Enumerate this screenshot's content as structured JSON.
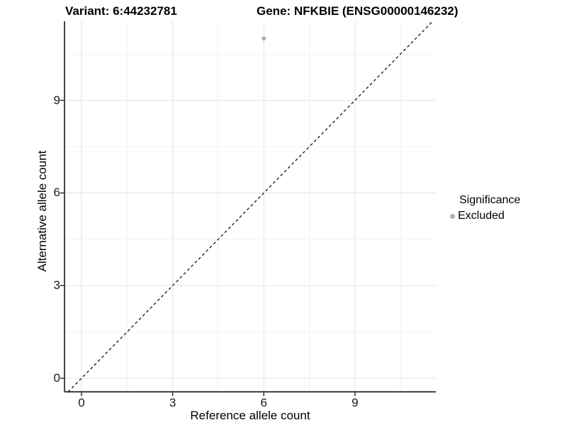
{
  "titles": {
    "variant": "Variant: 6:44232781",
    "gene": "Gene: NFKBIE (ENSG00000146232)"
  },
  "axes": {
    "xlabel": "Reference allele count",
    "ylabel": "Alternative allele count"
  },
  "legend": {
    "title": "Significance",
    "items": [
      {
        "label": "Excluded",
        "color": "#b0b0b0"
      }
    ]
  },
  "chart_data": {
    "type": "scatter",
    "title_left": "Variant: 6:44232781",
    "title_right": "Gene: NFKBIE (ENSG00000146232)",
    "xlabel": "Reference allele count",
    "ylabel": "Alternative allele count",
    "xlim": [
      -0.56,
      11.66
    ],
    "ylim": [
      -0.44,
      11.56
    ],
    "xticks": [
      0,
      3,
      6,
      9
    ],
    "yticks": [
      0,
      3,
      6,
      9
    ],
    "minor_xticks": [
      1.5,
      4.5,
      7.5,
      10.5
    ],
    "minor_yticks": [
      1.5,
      4.5,
      7.5,
      10.5
    ],
    "grid": true,
    "legend_position": "right",
    "identity_line": {
      "style": "dashed",
      "slope": 1,
      "intercept": 0
    },
    "series": [
      {
        "name": "Excluded",
        "color": "#b0b0b0",
        "points": [
          {
            "x": 6,
            "y": 11
          }
        ]
      }
    ]
  },
  "colors": {
    "background": "#ffffff",
    "point": "#b0b0b0",
    "grid_major": "#e7e7e7",
    "grid_minor": "#f1f1f1",
    "axis_line": "#2f2f2f",
    "tick_text": "#1a1a1a",
    "dashed_line": "#111111"
  }
}
